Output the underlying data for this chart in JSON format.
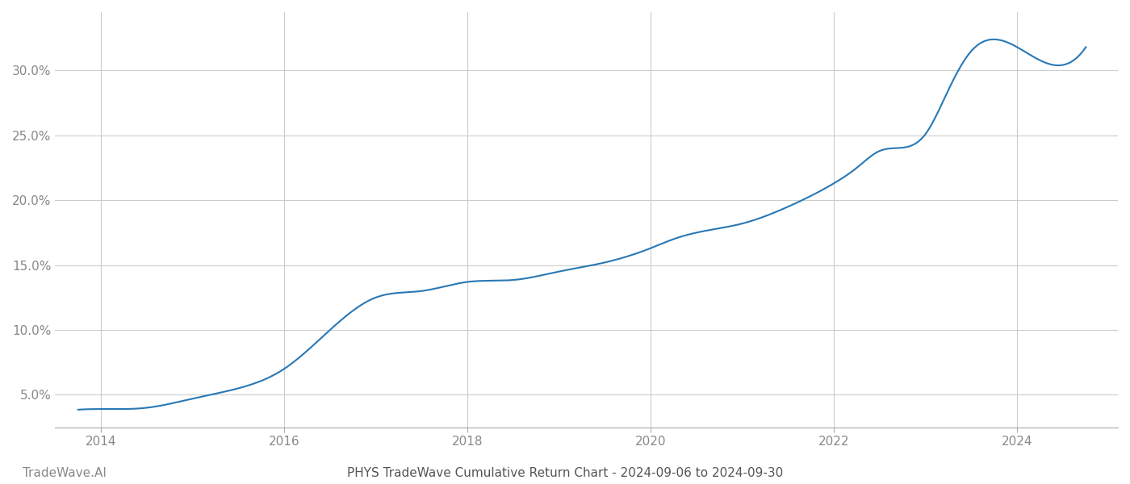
{
  "title": "PHYS TradeWave Cumulative Return Chart - 2024-09-06 to 2024-09-30",
  "watermark": "TradeWave.AI",
  "line_color": "#2878b5",
  "line_width": 1.5,
  "background_color": "#ffffff",
  "grid_color": "#cccccc",
  "x_years": [
    2013.75,
    2014.0,
    2014.5,
    2015.0,
    2015.5,
    2016.0,
    2016.5,
    2017.0,
    2017.5,
    2018.0,
    2018.5,
    2019.0,
    2019.5,
    2020.0,
    2020.25,
    2020.5,
    2021.0,
    2021.5,
    2022.0,
    2022.25,
    2022.5,
    2023.0,
    2023.25,
    2023.5,
    2024.0,
    2024.75
  ],
  "y_values": [
    3.85,
    3.9,
    4.0,
    4.7,
    5.5,
    7.0,
    10.0,
    12.5,
    13.0,
    13.7,
    13.85,
    14.5,
    15.2,
    16.3,
    17.0,
    17.5,
    18.2,
    19.5,
    21.3,
    22.5,
    23.8,
    25.1,
    28.5,
    31.5,
    31.8,
    31.8
  ],
  "yticks": [
    5.0,
    10.0,
    15.0,
    20.0,
    25.0,
    30.0
  ],
  "ytick_labels": [
    "5.0%",
    "10.0%",
    "15.0%",
    "20.0%",
    "25.0%",
    "30.0%"
  ],
  "xtick_years": [
    2014,
    2016,
    2018,
    2020,
    2022,
    2024
  ],
  "ylim": [
    2.5,
    34.5
  ],
  "xlim_start": 2013.5,
  "xlim_end": 2025.1,
  "title_fontsize": 11,
  "watermark_fontsize": 11,
  "tick_fontsize": 11,
  "tick_color": "#888888",
  "title_color": "#555555",
  "watermark_color": "#888888"
}
